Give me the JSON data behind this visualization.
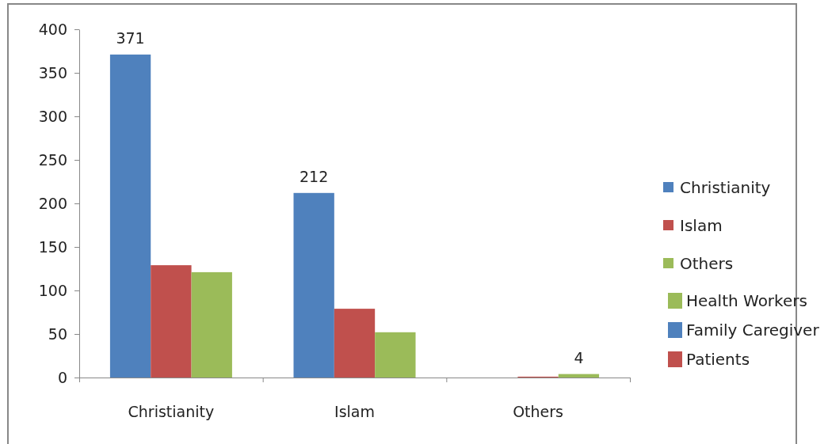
{
  "chart_data": {
    "type": "bar",
    "categories": [
      "Christianity",
      "Islam",
      "Others"
    ],
    "series": [
      {
        "name": "Christianity",
        "color": "#4f81bd",
        "values": [
          371,
          212,
          0
        ],
        "value_labels": [
          "371",
          "212",
          null
        ]
      },
      {
        "name": "Islam",
        "color": "#c0504d",
        "values": [
          129,
          79,
          1
        ],
        "value_labels": [
          null,
          null,
          null
        ]
      },
      {
        "name": "Others",
        "color": "#9bbb59",
        "values": [
          121,
          52,
          4
        ],
        "value_labels": [
          null,
          null,
          "4"
        ]
      }
    ],
    "ylim": [
      0,
      400
    ],
    "yticks": [
      0,
      50,
      100,
      150,
      200,
      250,
      300,
      350,
      400
    ],
    "grid": false,
    "legend": "right",
    "annotations": [
      "Health Workers",
      "Family Caregiver",
      "Patients"
    ]
  }
}
